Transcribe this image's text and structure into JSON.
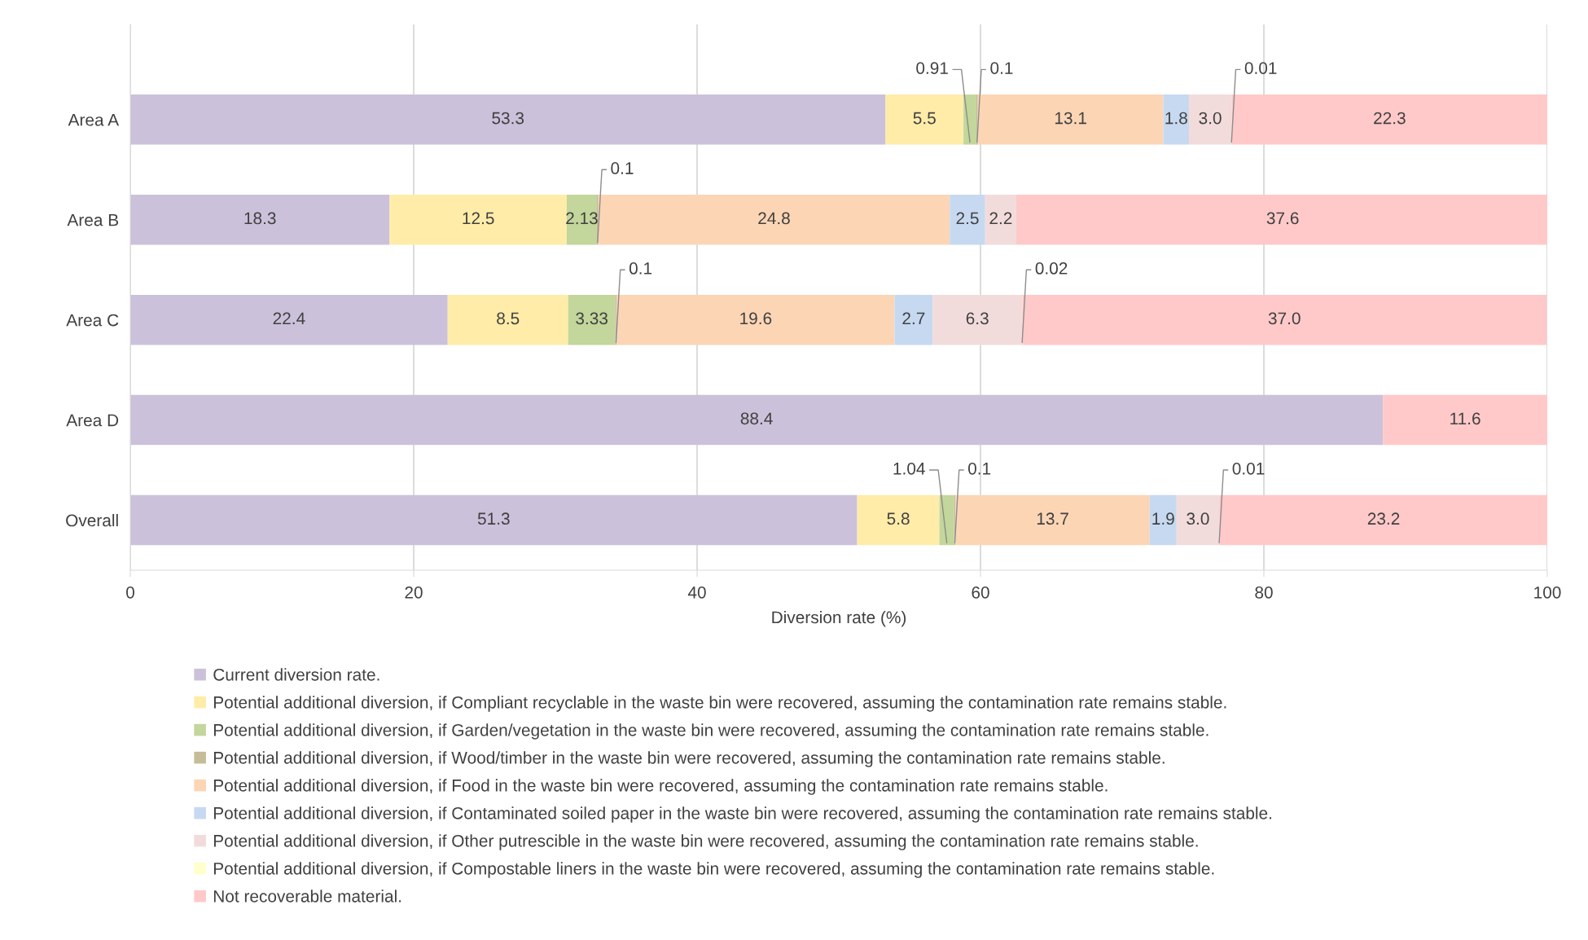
{
  "chart_data": {
    "type": "bar",
    "orientation": "horizontal",
    "stacked": true,
    "xlabel": "Diversion rate (%)",
    "categories": [
      "Area A",
      "Area B",
      "Area C",
      "Area D",
      "Overall"
    ],
    "xlim": [
      0,
      100
    ],
    "xticks": [
      0,
      20,
      40,
      60,
      80,
      100
    ],
    "grid": "x",
    "legend": "bottom",
    "series": [
      {
        "name": "Current diversion rate.",
        "color": "#ccc1da",
        "values": [
          53.3,
          18.3,
          22.4,
          88.4,
          51.3
        ],
        "value_labels": [
          "53.3",
          "18.3",
          "22.4",
          "88.4",
          "51.3"
        ]
      },
      {
        "name": "Potential additional diversion, if Compliant recyclable in the waste bin were recovered, assuming the contamination rate remains stable.",
        "color": "#ffeca8",
        "values": [
          5.5,
          12.5,
          8.5,
          null,
          5.8
        ],
        "value_labels": [
          "5.5",
          "12.5",
          "8.5",
          null,
          "5.8"
        ]
      },
      {
        "name": "Potential additional diversion, if Garden/vegetation in the waste bin were recovered, assuming the contamination rate remains stable.",
        "color": "#c3d69b",
        "values": [
          0.91,
          2.13,
          3.33,
          null,
          1.04
        ],
        "value_labels": [
          "0.91",
          "2.13",
          "3.33",
          null,
          "1.04"
        ]
      },
      {
        "name": "Potential additional diversion, if Wood/timber in the waste bin were recovered, assuming the contamination rate remains stable.",
        "color": "#c4bd97",
        "values": [
          0.1,
          0.1,
          0.1,
          null,
          0.1
        ],
        "value_labels": [
          "0.1",
          "0.1",
          "0.1",
          null,
          "0.1"
        ]
      },
      {
        "name": "Potential additional diversion, if Food in the waste bin were recovered, assuming the contamination rate remains stable.",
        "color": "#fcd5b5",
        "values": [
          13.1,
          24.8,
          19.6,
          null,
          13.7
        ],
        "value_labels": [
          "13.1",
          "24.8",
          "19.6",
          null,
          "13.7"
        ]
      },
      {
        "name": "Potential additional diversion, if Contaminated soiled paper in the waste bin were recovered, assuming the contamination rate remains stable.",
        "color": "#c6d9f1",
        "values": [
          1.8,
          2.5,
          2.7,
          null,
          1.9
        ],
        "value_labels": [
          "1.8",
          "2.5",
          "2.7",
          null,
          "1.9"
        ]
      },
      {
        "name": "Potential additional diversion, if Other putrescible in the waste bin were recovered, assuming the contamination rate remains stable.",
        "color": "#f2dcdb",
        "values": [
          3.0,
          2.2,
          6.3,
          null,
          3.0
        ],
        "value_labels": [
          "3.0",
          "2.2",
          "6.3",
          null,
          "3.0"
        ]
      },
      {
        "name": "Potential additional diversion, if Compostable liners in the waste bin were recovered, assuming the contamination rate remains stable.",
        "color": "#ffffcc",
        "values": [
          0.01,
          null,
          0.02,
          null,
          0.01
        ],
        "value_labels": [
          "0.01",
          null,
          "0.02",
          null,
          "0.01"
        ]
      },
      {
        "name": "Not recoverable material.",
        "color": "#ffc9c9",
        "values": [
          22.3,
          37.6,
          37.0,
          11.6,
          23.2
        ],
        "value_labels": [
          "22.3",
          "37.6",
          "37.0",
          "11.6",
          "23.2"
        ]
      }
    ]
  }
}
